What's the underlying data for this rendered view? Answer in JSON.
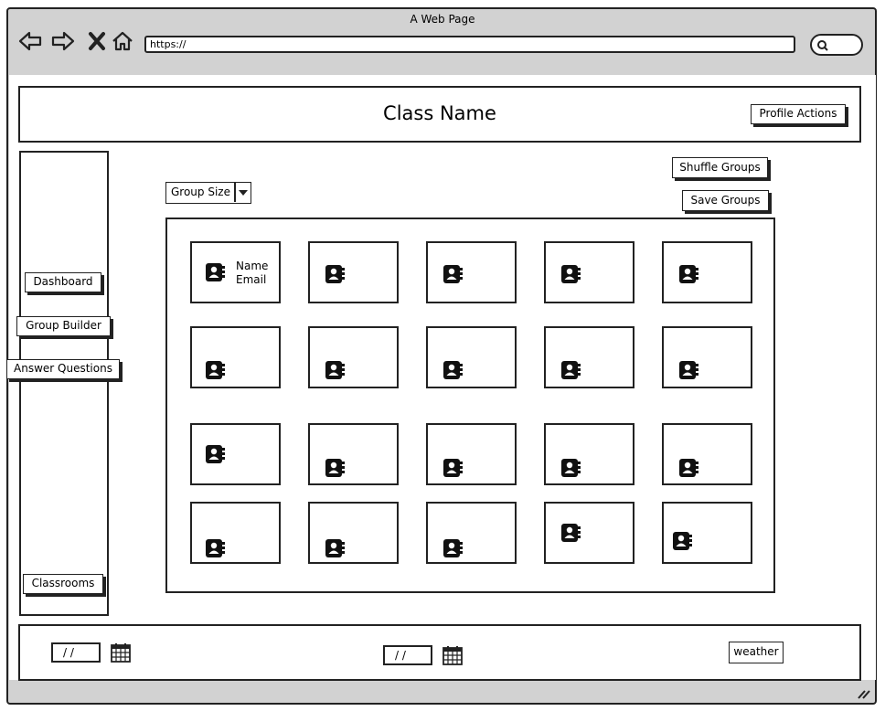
{
  "browser": {
    "title": "A Web Page",
    "url": "https://"
  },
  "header": {
    "class_name": "Class Name",
    "profile_actions": "Profile Actions"
  },
  "sidebar": {
    "items": [
      {
        "label": "Dashboard"
      },
      {
        "label": "Group Builder"
      },
      {
        "label": "Answer Questions"
      },
      {
        "label": "Classrooms"
      }
    ]
  },
  "controls": {
    "group_size": "Group Size",
    "shuffle_groups": "Shuffle Groups",
    "save_groups": "Save Groups"
  },
  "student_card": {
    "name": "Name",
    "email": "Email"
  },
  "footer": {
    "date1": "/ /",
    "date2": "/ /",
    "weather": "weather"
  }
}
